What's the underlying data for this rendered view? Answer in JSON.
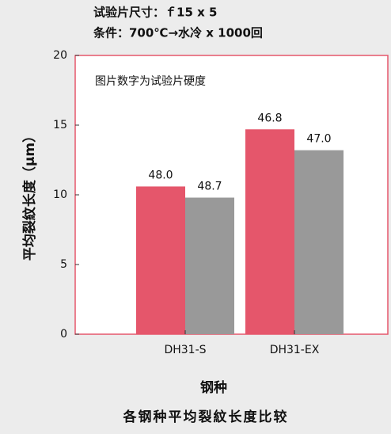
{
  "chart_data": {
    "type": "bar",
    "title_lines": [
      "试验片尺寸：ｆ15 x 5",
      "条件：700℃→水冷 x 1000回"
    ],
    "annotation": "图片数字为试验片硬度",
    "y_label": "平均裂紋长度（μm）",
    "x_label": "钢种",
    "caption": "各钢种平均裂紋长度比较",
    "categories": [
      "DH31-S",
      "DH31-EX"
    ],
    "series": [
      {
        "color": "#e5566b",
        "values": [
          10.6,
          14.7
        ],
        "labels": [
          "48.0",
          "46.8"
        ]
      },
      {
        "color": "#999999",
        "values": [
          9.8,
          13.2
        ],
        "labels": [
          "48.7",
          "47.0"
        ]
      }
    ],
    "ylim": [
      0,
      20
    ],
    "yticks": [
      0,
      5,
      10,
      15,
      20
    ],
    "frame_color": "#e5566b"
  }
}
